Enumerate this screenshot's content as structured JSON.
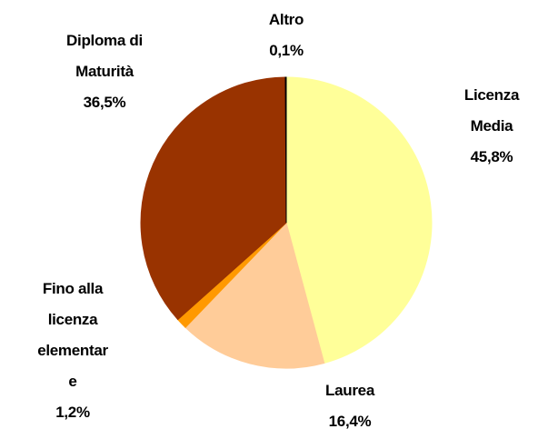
{
  "chart_data": {
    "type": "pie",
    "categories": [
      "Licenza\nMedia",
      "Laurea",
      "Fino alla\nlicenza\nelementar\ne",
      "Diploma di\nMaturità",
      "Altro"
    ],
    "values": [
      45.8,
      16.4,
      1.2,
      36.5,
      0.1
    ],
    "value_labels": [
      "45,8%",
      "16,4%",
      "1,2%",
      "36,5%",
      "0,1%"
    ],
    "colors": [
      "#FFFF99",
      "#FFCC99",
      "#FF9900",
      "#993300",
      "#000000"
    ]
  }
}
